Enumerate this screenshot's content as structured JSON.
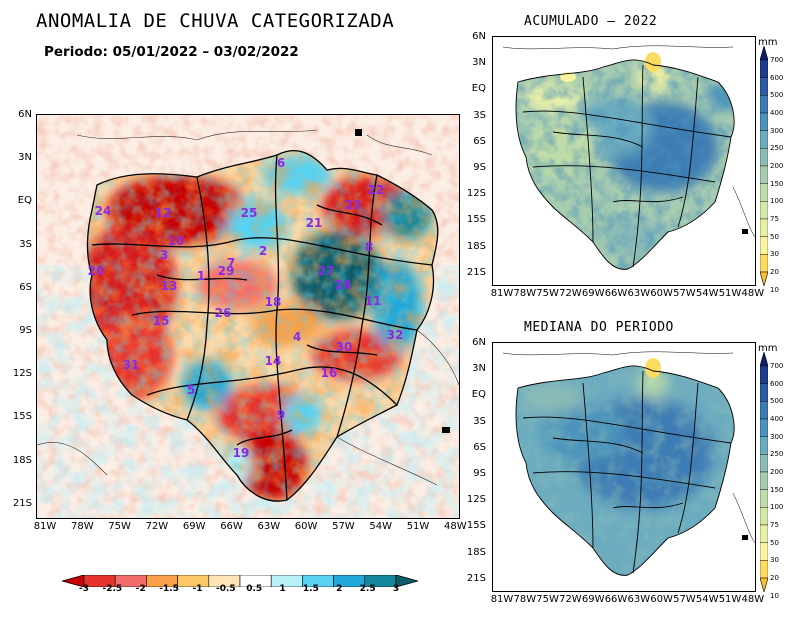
{
  "main_map": {
    "title": "ANOMALIA DE CHUVA CATEGORIZADA",
    "period": "Periodo: 05/01/2022 – 03/02/2022",
    "lat_labels": [
      "6N",
      "3N",
      "EQ",
      "3S",
      "6S",
      "9S",
      "12S",
      "15S",
      "18S",
      "21S"
    ],
    "lon_labels": [
      "81W",
      "78W",
      "75W",
      "72W",
      "69W",
      "66W",
      "63W",
      "60W",
      "57W",
      "54W",
      "51W",
      "48W"
    ],
    "basin_numbers": [
      {
        "n": "6"
      },
      {
        "n": "22"
      },
      {
        "n": "23"
      },
      {
        "n": "24"
      },
      {
        "n": "12"
      },
      {
        "n": "25"
      },
      {
        "n": "21"
      },
      {
        "n": "10"
      },
      {
        "n": "2"
      },
      {
        "n": "8"
      },
      {
        "n": "3"
      },
      {
        "n": "20"
      },
      {
        "n": "13"
      },
      {
        "n": "1"
      },
      {
        "n": "7"
      },
      {
        "n": "28"
      },
      {
        "n": "11"
      },
      {
        "n": "18"
      },
      {
        "n": "15"
      },
      {
        "n": "26"
      },
      {
        "n": "4"
      },
      {
        "n": "32"
      },
      {
        "n": "30"
      },
      {
        "n": "14"
      },
      {
        "n": "31"
      },
      {
        "n": "16"
      },
      {
        "n": "5"
      },
      {
        "n": "9"
      },
      {
        "n": "19"
      },
      {
        "n": "27"
      },
      {
        "n": "29"
      }
    ],
    "colorbar": {
      "labels": [
        "-3",
        "-2.5",
        "-2",
        "-1.5",
        "-1",
        "-0.5",
        "0.5",
        "1",
        "1.5",
        "2",
        "2.5",
        "3"
      ],
      "colors": [
        "#c80000",
        "#e8322d",
        "#f46d6d",
        "#f8a04a",
        "#fcc86a",
        "#fde5b8",
        "#ffffff",
        "#b8f0f8",
        "#58d2f0",
        "#20a8d8",
        "#14879c",
        "#0c5c6c"
      ]
    }
  },
  "acumulado_map": {
    "title": "ACUMULADO – 2022",
    "lat_labels": [
      "6N",
      "3N",
      "EQ",
      "3S",
      "6S",
      "9S",
      "12S",
      "15S",
      "18S",
      "21S"
    ],
    "lon_labels": [
      "81W",
      "78W",
      "75W",
      "72W",
      "69W",
      "66W",
      "63W",
      "60W",
      "57W",
      "54W",
      "51W",
      "48W"
    ]
  },
  "mediana_map": {
    "title": "MEDIANA DO PERIODO",
    "lat_labels": [
      "6N",
      "3N",
      "EQ",
      "3S",
      "6S",
      "9S",
      "12S",
      "15S",
      "18S",
      "21S"
    ],
    "lon_labels": [
      "81W",
      "78W",
      "75W",
      "72W",
      "69W",
      "66W",
      "63W",
      "60W",
      "57W",
      "54W",
      "51W",
      "48W"
    ]
  },
  "mm_colorbar": {
    "unit": "mm",
    "labels": [
      "700",
      "600",
      "500",
      "400",
      "300",
      "250",
      "200",
      "150",
      "100",
      "75",
      "50",
      "30",
      "20",
      "10"
    ],
    "colors": [
      "#0c1e6c",
      "#1c3c8c",
      "#2c5ca4",
      "#3c7cb4",
      "#4c94bc",
      "#6cacc0",
      "#8cbcb8",
      "#a8ccb0",
      "#c0dca8",
      "#d4e8a8",
      "#e8f0a8",
      "#f8f4a0",
      "#fcdc60",
      "#f8c030"
    ]
  }
}
